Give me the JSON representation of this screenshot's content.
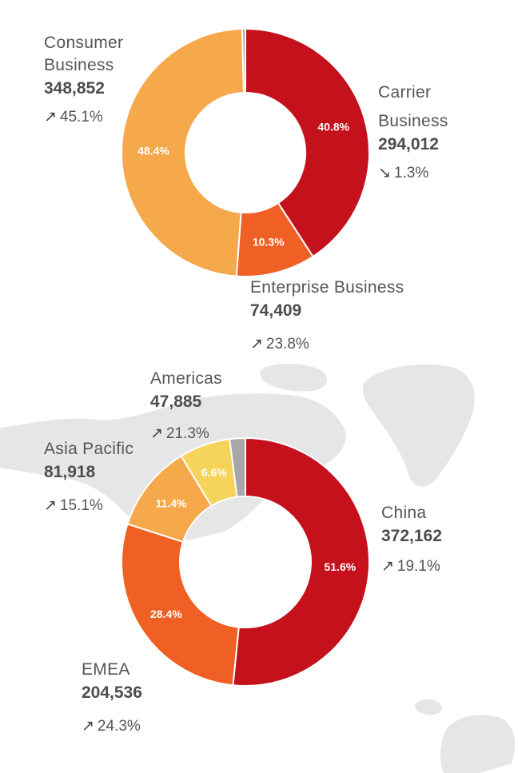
{
  "colors": {
    "dark_red": "#c5111b",
    "orange_red": "#f05f23",
    "light_orange": "#f6a94a",
    "yellow": "#f6d35a",
    "grey": "#a7a7a7",
    "map_grey": "#e5e5e5"
  },
  "icons": {
    "up": "arrow-up-right-icon",
    "down": "arrow-down-right-icon"
  },
  "chart_data": [
    {
      "type": "pie",
      "variant": "donut",
      "slices": [
        {
          "name": "Carrier Business",
          "value": 294012,
          "percent_label": "40.8%",
          "change": "1.3%",
          "trend": "down",
          "color": "#c5111b"
        },
        {
          "name": "Enterprise Business",
          "value": 74409,
          "percent_label": "10.3%",
          "change": "23.8%",
          "trend": "up",
          "color": "#f05f23"
        },
        {
          "name": "Consumer Business",
          "value": 348852,
          "percent_label": "48.4%",
          "change": "45.1%",
          "trend": "up",
          "color": "#f6a94a"
        },
        {
          "name": "",
          "value": 3000,
          "percent_label": "",
          "change": "",
          "trend": "",
          "color": "#a7a7a7"
        }
      ]
    },
    {
      "type": "pie",
      "variant": "donut",
      "slices": [
        {
          "name": "China",
          "value": 372162,
          "percent_label": "51.6%",
          "change": "19.1%",
          "trend": "up",
          "color": "#c5111b"
        },
        {
          "name": "EMEA",
          "value": 204536,
          "percent_label": "28.4%",
          "change": "24.3%",
          "trend": "up",
          "color": "#f05f23"
        },
        {
          "name": "Asia Pacific",
          "value": 81918,
          "percent_label": "11.4%",
          "change": "15.1%",
          "trend": "up",
          "color": "#f6a94a"
        },
        {
          "name": "Americas",
          "value": 47885,
          "percent_label": "6.6%",
          "change": "21.3%",
          "trend": "up",
          "color": "#f6d35a"
        },
        {
          "name": "",
          "value": 14700,
          "percent_label": "",
          "change": "",
          "trend": "",
          "color": "#a7a7a7"
        }
      ]
    }
  ],
  "labels": {
    "consumer": {
      "name_l1": "Consumer",
      "name_l2": "Business",
      "value": "348,852",
      "change": "45.1%"
    },
    "carrier": {
      "name_l1": "Carrier",
      "name_l2": "Business",
      "value": "294,012",
      "change": "1.3%"
    },
    "enterprise": {
      "name": "Enterprise Business",
      "value": "74,409",
      "change": "23.8%"
    },
    "americas": {
      "name": "Americas",
      "value": "47,885",
      "change": "21.3%"
    },
    "asia_pacific": {
      "name": "Asia Pacific",
      "value": "81,918",
      "change": "15.1%"
    },
    "china": {
      "name": "China",
      "value": "372,162",
      "change": "19.1%"
    },
    "emea": {
      "name": "EMEA",
      "value": "204,536",
      "change": "24.3%"
    }
  }
}
